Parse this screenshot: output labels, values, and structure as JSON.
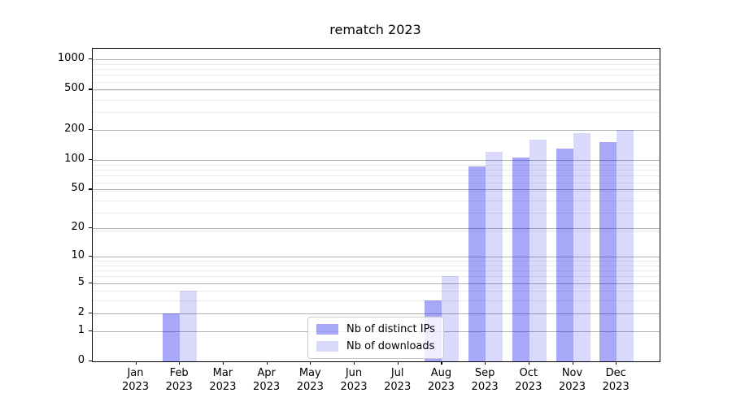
{
  "chart_data": {
    "type": "bar",
    "title": "rematch 2023",
    "categories": [
      "Jan",
      "Feb",
      "Mar",
      "Apr",
      "May",
      "Jun",
      "Jul",
      "Aug",
      "Sep",
      "Oct",
      "Nov",
      "Dec"
    ],
    "year_label": "2023",
    "series": [
      {
        "name": "Nb of distinct IPs",
        "color": "rgba(0,0,238,0.34)",
        "values": [
          0,
          2,
          0,
          0,
          0,
          0,
          0,
          3,
          85,
          105,
          130,
          150
        ]
      },
      {
        "name": "Nb of downloads",
        "color": "rgba(0,0,238,0.15)",
        "values": [
          0,
          4,
          0,
          0,
          0,
          0,
          0,
          6,
          120,
          160,
          185,
          200
        ]
      }
    ],
    "y_ticks": [
      0,
      1,
      2,
      5,
      10,
      20,
      50,
      100,
      200,
      500,
      1000
    ],
    "y_scale": "log1p",
    "ylim": [
      0,
      1278
    ],
    "grid": {
      "horizontal": true,
      "major_color": "#b0b0b0",
      "minor_color": "#ebebeb"
    },
    "legend_position": "inside-bottom-center"
  },
  "colors": {
    "background": "#ffffff",
    "axis": "#000000",
    "text": "#000000",
    "legend_border": "#cccccc"
  }
}
